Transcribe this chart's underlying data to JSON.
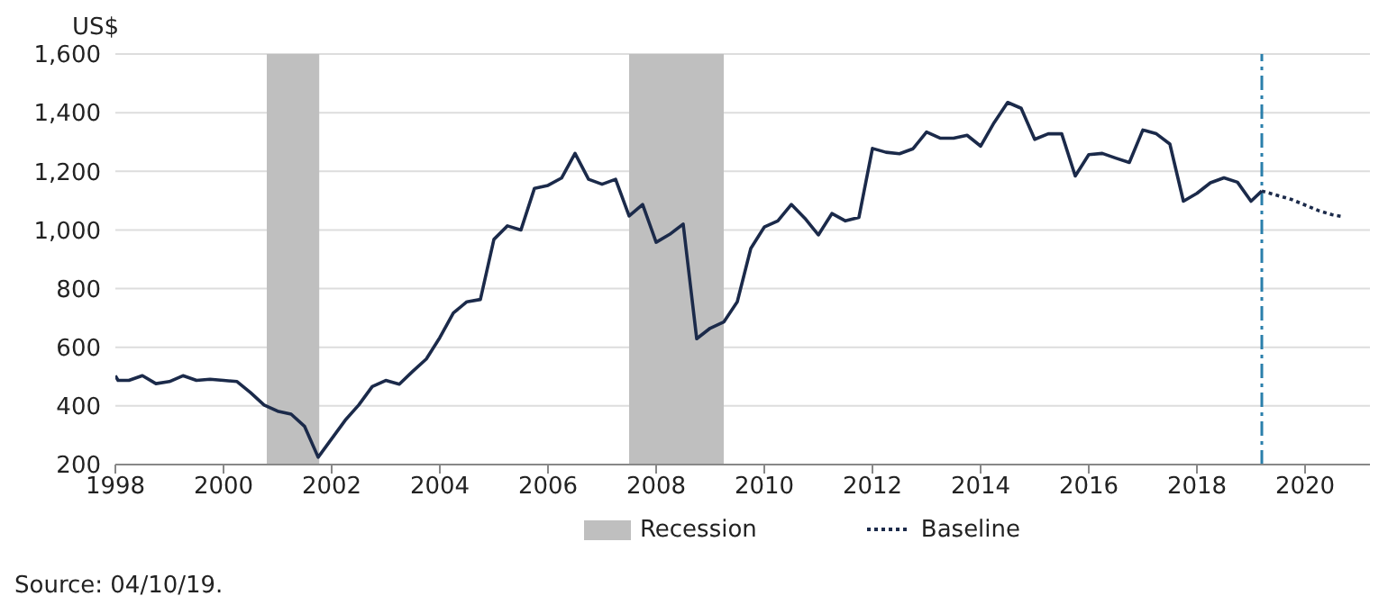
{
  "chart_data": {
    "type": "line",
    "ylabel": "US$",
    "xlim": [
      1998,
      2021.2
    ],
    "xticks": [
      1998,
      2000,
      2002,
      2004,
      2006,
      2008,
      2010,
      2012,
      2014,
      2016,
      2018,
      2020
    ],
    "ylim": [
      200,
      1600
    ],
    "yticks": [
      200,
      {
        "value": 400,
        "label": "400"
      },
      {
        "value": 600,
        "label": "600"
      },
      {
        "value": 800,
        "label": "800"
      },
      {
        "value": 1000,
        "label": "1,000"
      },
      {
        "value": 1200,
        "label": "1,200"
      },
      {
        "value": 1400,
        "label": "1,400"
      },
      {
        "value": 1600,
        "label": "1,600"
      }
    ],
    "grid": "y",
    "legend": "bottom",
    "marker": "none",
    "series": [
      {
        "color": "#1b2a4a",
        "line_style": "solid",
        "x": [
          1998,
          1998.05,
          1998.25,
          1998.5,
          1998.75,
          1999,
          1999.25,
          1999.5,
          1999.75,
          2000,
          2000.25,
          2000.5,
          2000.75,
          2001,
          2001.25,
          2001.5,
          2001.75,
          2002,
          2002.25,
          2002.5,
          2002.75,
          2003,
          2003.25,
          2003.5,
          2003.75,
          2004,
          2004.25,
          2004.5,
          2004.75,
          2005,
          2005.25,
          2005.5,
          2005.75,
          2006,
          2006.25,
          2006.5,
          2006.75,
          2007,
          2007.25,
          2007.5,
          2007.75,
          2008,
          2008.25,
          2008.5,
          2008.75,
          2009,
          2009.25,
          2009.5,
          2009.75,
          2010,
          2010.25,
          2010.5,
          2010.75,
          2011,
          2011.25,
          2011.5,
          2011.75,
          2012,
          2012.25,
          2012.5,
          2012.75,
          2013,
          2013.25,
          2013.5,
          2013.75,
          2014,
          2014.25,
          2014.5,
          2014.75,
          2015,
          2015.25,
          2015.5,
          2015.75,
          2016,
          2016.25,
          2016.5,
          2016.75,
          2017,
          2017.25,
          2017.5,
          2017.75,
          2018,
          2018.25,
          2018.5,
          2018.75,
          2019,
          2019.2
        ],
        "values": [
          503,
          487,
          487,
          503,
          476,
          483,
          503,
          487,
          491,
          487,
          483,
          445,
          403,
          382,
          372,
          330,
          225,
          288,
          351,
          403,
          466,
          487,
          474,
          518,
          560,
          633,
          717,
          755,
          763,
          968,
          1014,
          1000,
          1142,
          1152,
          1177,
          1261,
          1173,
          1156,
          1173,
          1048,
          1087,
          958,
          985,
          1020,
          629,
          665,
          686,
          755,
          937,
          1010,
          1031,
          1087,
          1040,
          983,
          1056,
          1031,
          1043,
          1278,
          1265,
          1260,
          1277,
          1334,
          1313,
          1313,
          1323,
          1286,
          1366,
          1435,
          1415,
          1309,
          1328,
          1328,
          1184,
          1257,
          1261,
          1245,
          1230,
          1341,
          1328,
          1293,
          1098,
          1125,
          1161,
          1178,
          1163,
          1098,
          1133
        ]
      },
      {
        "name": "Baseline",
        "color": "#1b2a4a",
        "line_style": "dotted",
        "x": [
          2019.2,
          2019.5,
          2019.75,
          2020,
          2020.25,
          2020.5,
          2020.68
        ],
        "values": [
          1133,
          1117,
          1104,
          1085,
          1066,
          1052,
          1046
        ]
      }
    ],
    "bands": [
      {
        "axis": "x",
        "from": 2000.8,
        "to": 2001.77,
        "label": "Recession",
        "color": "#bfbfbf"
      },
      {
        "axis": "x",
        "from": 2007.5,
        "to": 2009.25,
        "color": "#bfbfbf"
      }
    ],
    "ref_lines": [
      {
        "axis": "x",
        "value": 2019.2,
        "color": "#2a7fab",
        "line_style": "dashdot"
      }
    ],
    "annotations": [
      "Source: 04/10/19."
    ]
  }
}
